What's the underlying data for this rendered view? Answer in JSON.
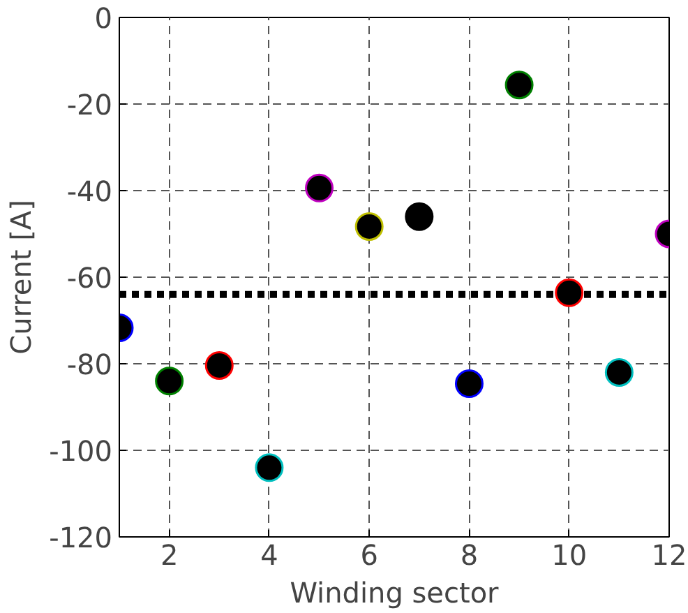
{
  "chart_data": {
    "type": "scatter",
    "xlabel": "Winding sector",
    "ylabel": "Current [A]",
    "x": [
      1,
      2,
      3,
      4,
      5,
      6,
      7,
      8,
      9,
      10,
      11,
      12
    ],
    "series": [
      {
        "color": "#000000",
        "colors": [
          "#0000ff",
          "#008000",
          "#ff0000",
          "#00bfbf",
          "#bf00bf",
          "#bfbf00",
          "#000000",
          "#0000ff",
          "#008000",
          "#ff0000",
          "#00bfbf",
          "#bf00bf"
        ],
        "values": [
          -71.7,
          -84,
          -80.4,
          -104,
          -39.4,
          -48.3,
          -46,
          -84.6,
          -15.6,
          -63.6,
          -82,
          -50
        ]
      }
    ],
    "xlim": [
      1,
      12
    ],
    "xticks": [
      2,
      4,
      6,
      8,
      10,
      12
    ],
    "ylim": [
      -120,
      0
    ],
    "yticks": [
      -120,
      -100,
      -80,
      -60,
      -40,
      -20,
      0
    ],
    "ref_lines": [
      {
        "axis": "y",
        "value": -64,
        "color": "#000000",
        "line_style": "dotted"
      }
    ],
    "grid": true,
    "marker": "circle"
  }
}
